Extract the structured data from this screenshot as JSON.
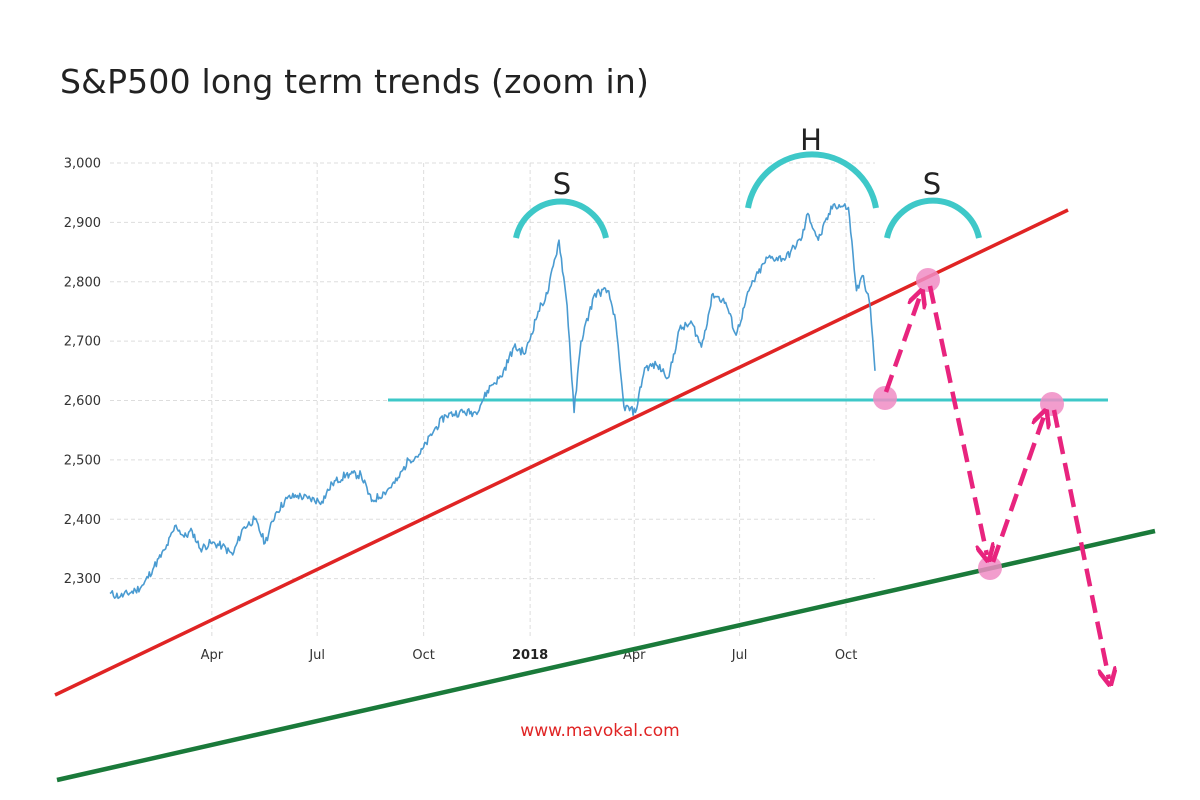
{
  "chart_data": {
    "type": "line",
    "title": "S&P500 long term trends (zoom in)",
    "watermark": "www.mavokal.com",
    "xlabel": "",
    "ylabel": "",
    "ylim": [
      2200,
      3000
    ],
    "y_ticks": [
      2300,
      2400,
      2500,
      2600,
      2700,
      2800,
      2900,
      3000
    ],
    "y_tick_labels": [
      "2,300",
      "2,400",
      "2,500",
      "2,600",
      "2,700",
      "2,800",
      "2,900",
      "3,000"
    ],
    "xlim": [
      "2017-01-03",
      "2018-10-26"
    ],
    "x_ticks": [
      {
        "label": "Apr",
        "date": "2017-04-01",
        "bold": false
      },
      {
        "label": "Jul",
        "date": "2017-07-01",
        "bold": false
      },
      {
        "label": "Oct",
        "date": "2017-10-01",
        "bold": false
      },
      {
        "label": "2018",
        "date": "2018-01-01",
        "bold": true
      },
      {
        "label": "Apr",
        "date": "2018-04-01",
        "bold": false
      },
      {
        "label": "Jul",
        "date": "2018-07-01",
        "bold": false
      },
      {
        "label": "Oct",
        "date": "2018-10-01",
        "bold": false
      }
    ],
    "grid": true,
    "series": [
      {
        "color": "#4a9bd1",
        "points": [
          [
            "2017-01-03",
            2275
          ],
          [
            "2017-01-12",
            2270
          ],
          [
            "2017-01-25",
            2280
          ],
          [
            "2017-02-01",
            2290
          ],
          [
            "2017-02-10",
            2320
          ],
          [
            "2017-02-20",
            2350
          ],
          [
            "2017-03-01",
            2390
          ],
          [
            "2017-03-08",
            2370
          ],
          [
            "2017-03-15",
            2380
          ],
          [
            "2017-03-22",
            2350
          ],
          [
            "2017-03-31",
            2360
          ],
          [
            "2017-04-10",
            2355
          ],
          [
            "2017-04-19",
            2340
          ],
          [
            "2017-04-28",
            2385
          ],
          [
            "2017-05-08",
            2400
          ],
          [
            "2017-05-17",
            2360
          ],
          [
            "2017-05-26",
            2410
          ],
          [
            "2017-06-05",
            2435
          ],
          [
            "2017-06-14",
            2440
          ],
          [
            "2017-06-23",
            2435
          ],
          [
            "2017-07-05",
            2430
          ],
          [
            "2017-07-14",
            2460
          ],
          [
            "2017-07-26",
            2475
          ],
          [
            "2017-08-08",
            2475
          ],
          [
            "2017-08-17",
            2430
          ],
          [
            "2017-08-28",
            2445
          ],
          [
            "2017-09-08",
            2465
          ],
          [
            "2017-09-18",
            2500
          ],
          [
            "2017-09-28",
            2510
          ],
          [
            "2017-10-10",
            2550
          ],
          [
            "2017-10-20",
            2575
          ],
          [
            "2017-11-01",
            2580
          ],
          [
            "2017-11-15",
            2580
          ],
          [
            "2017-11-28",
            2625
          ],
          [
            "2017-12-07",
            2640
          ],
          [
            "2017-12-18",
            2690
          ],
          [
            "2017-12-28",
            2680
          ],
          [
            "2018-01-08",
            2750
          ],
          [
            "2018-01-16",
            2780
          ],
          [
            "2018-01-26",
            2870
          ],
          [
            "2018-02-02",
            2760
          ],
          [
            "2018-02-08",
            2580
          ],
          [
            "2018-02-14",
            2700
          ],
          [
            "2018-02-26",
            2780
          ],
          [
            "2018-03-09",
            2785
          ],
          [
            "2018-03-15",
            2745
          ],
          [
            "2018-03-23",
            2590
          ],
          [
            "2018-04-02",
            2580
          ],
          [
            "2018-04-10",
            2655
          ],
          [
            "2018-04-20",
            2660
          ],
          [
            "2018-05-01",
            2640
          ],
          [
            "2018-05-10",
            2720
          ],
          [
            "2018-05-21",
            2730
          ],
          [
            "2018-05-29",
            2690
          ],
          [
            "2018-06-08",
            2780
          ],
          [
            "2018-06-19",
            2765
          ],
          [
            "2018-06-28",
            2710
          ],
          [
            "2018-07-10",
            2790
          ],
          [
            "2018-07-25",
            2840
          ],
          [
            "2018-08-10",
            2840
          ],
          [
            "2018-08-24",
            2875
          ],
          [
            "2018-08-29",
            2915
          ],
          [
            "2018-09-07",
            2870
          ],
          [
            "2018-09-20",
            2930
          ],
          [
            "2018-10-03",
            2925
          ],
          [
            "2018-10-10",
            2785
          ],
          [
            "2018-10-16",
            2810
          ],
          [
            "2018-10-22",
            2755
          ],
          [
            "2018-10-26",
            2650
          ]
        ]
      }
    ],
    "annotations": {
      "head_shoulders_labels": [
        "S",
        "H",
        "S"
      ],
      "neckline_color": "#3ec8c8",
      "upper_trendline_color": "#e02424",
      "lower_trendline_color": "#1a7a3a",
      "projection_arrow_color": "#e8247e",
      "projection_marker_color": "#f08cc4"
    }
  }
}
